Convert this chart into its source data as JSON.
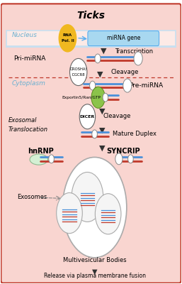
{
  "title": "Ticks",
  "bg_outer": "#ffffff",
  "bg_main": "#f9d5d0",
  "nucleus_bg": "#fdeae6",
  "nucleus_border": "#c8e0f0",
  "nucleus_label": "Nucleus",
  "cytoplasm_label": "Cytoplasm",
  "exosomal_label": "Exosomal\nTranslocation",
  "rna_pol_color": "#f0b820",
  "mirna_gene_color": "#a8d8f0",
  "labels": {
    "transcription": "Transcription",
    "pri_mirna": "Pri-miRNA",
    "cleavage1": "Cleavage",
    "drosha_line1": "DROSHA/",
    "drosha_line2": "DGCR8",
    "pre_mirna": "Pre-miRNA",
    "exportin": "Exportin5/Ran/GTP",
    "dicer": "DICER",
    "cleavage2": "Cleavage",
    "mature_duplex": "Mature Duplex",
    "hnrnp": "hnRNP",
    "syncrip": "SYNCRIP",
    "exosomes": "Exosomes",
    "multivesicular": "Multivesicular Bodies",
    "release": "Release via plasma membrane fusion"
  },
  "border_color": "#c0392b",
  "line_blue": "#4a90d9",
  "line_red": "#c0392b",
  "arrow_color": "#333333",
  "dashed_color": "#c0392b"
}
